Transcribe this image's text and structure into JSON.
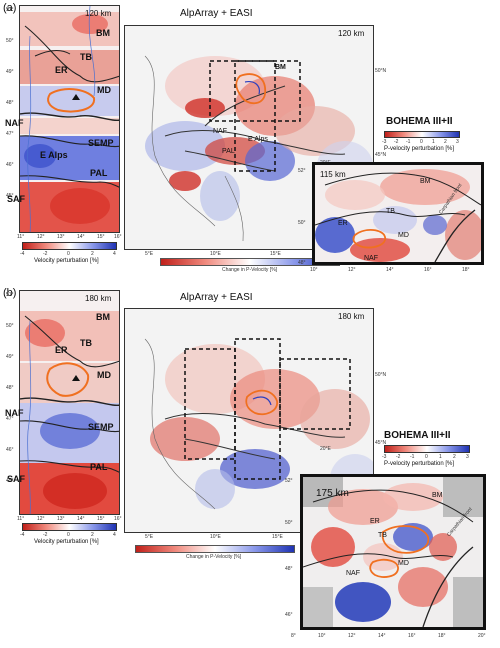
{
  "panels": [
    {
      "letter": "(a)",
      "title": "AlpArray + EASI",
      "left_map": {
        "depth": "120 km",
        "lat_ticks": [
          "51°",
          "50°",
          "49°",
          "48°",
          "47°",
          "46°",
          "45°"
        ],
        "lon_ticks": [
          "11°",
          "12°",
          "13°",
          "14°",
          "15°",
          "16°"
        ],
        "labels": [
          "BM",
          "ER",
          "TB",
          "MD",
          "NAF",
          "SEMP",
          "E Alps",
          "PAL",
          "SAF"
        ],
        "colorbar_ticks": [
          "-4",
          "-2",
          "0",
          "2",
          "4"
        ],
        "colorbar_caption": "Velocity perturbation [%]"
      },
      "center_map": {
        "depth": "120 km",
        "labels": [
          "BM",
          "NAF",
          "E Alps",
          "PAL"
        ],
        "lon_ticks": [
          "5°E",
          "10°E",
          "15°E",
          "20°E"
        ],
        "lat_ticks": [
          "50°N",
          "45°N"
        ],
        "colorbar_caption": "Change in P-Velocity [%]"
      },
      "right_map": {
        "title": "BOHEMA III+II",
        "colorbar_ticks": [
          "-3",
          "-2",
          "-1",
          "0",
          "1",
          "2",
          "3"
        ],
        "colorbar_caption": "P-velocity perturbation [%]",
        "depth": "115 km",
        "labels": [
          "BM",
          "TB",
          "ER",
          "MD",
          "NAF",
          "Carpathian front"
        ],
        "lat_ticks": [
          "52°",
          "50°",
          "48°"
        ],
        "lon_ticks": [
          "10°",
          "12°",
          "14°",
          "16°",
          "18°"
        ]
      }
    },
    {
      "letter": "(b)",
      "title": "AlpArray + EASI",
      "left_map": {
        "depth": "180 km",
        "lat_ticks": [
          "51°",
          "50°",
          "49°",
          "48°",
          "47°",
          "46°",
          "45°"
        ],
        "lon_ticks": [
          "11°",
          "12°",
          "13°",
          "14°",
          "15°",
          "16°"
        ],
        "labels": [
          "BM",
          "ER",
          "TB",
          "MD",
          "NAF",
          "SEMP",
          "PAL",
          "SAF"
        ],
        "colorbar_ticks": [
          "-4",
          "-2",
          "0",
          "2",
          "4"
        ],
        "colorbar_caption": "Velocity perturbation [%]"
      },
      "center_map": {
        "depth": "180 km",
        "lon_ticks": [
          "5°E",
          "10°E",
          "15°E",
          "20°E"
        ],
        "lat_ticks": [
          "50°N",
          "45°N"
        ],
        "colorbar_caption": "Change in P-Velocity [%]"
      },
      "right_map": {
        "title": "BOHEMA III+II",
        "colorbar_ticks": [
          "-3",
          "-2",
          "-1",
          "0",
          "1",
          "2",
          "3"
        ],
        "colorbar_caption": "P-velocity perturbation [%]",
        "depth": "175 km",
        "labels": [
          "BM",
          "TB",
          "ER",
          "MD",
          "NAF",
          "Carpathian front"
        ],
        "lat_ticks": [
          "52°",
          "50°",
          "48°",
          "46°"
        ],
        "lon_ticks": [
          "8°",
          "10°",
          "12°",
          "14°",
          "16°",
          "18°",
          "20°"
        ]
      }
    }
  ],
  "colors": {
    "negative": "#d7301f",
    "positive": "#2c3fbf",
    "outline": "#f07020",
    "neutral": "#f4f4f4"
  }
}
